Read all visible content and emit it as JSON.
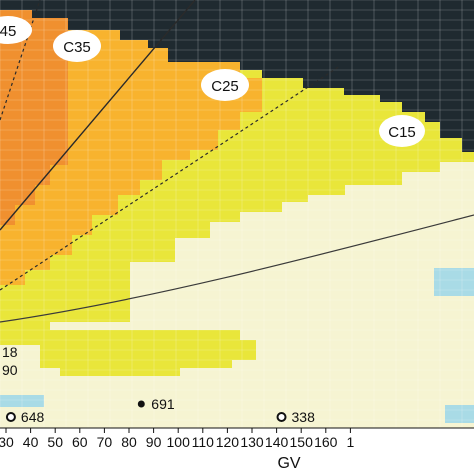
{
  "chart_data": {
    "type": "heatmap",
    "xlabel": "GV",
    "x_ticks": [
      "30",
      "40",
      "50",
      "60",
      "70",
      "80",
      "90",
      "100",
      "110",
      "120",
      "130",
      "140",
      "150",
      "160",
      "1"
    ],
    "zone_colors": {
      "dark": "#1f2a30",
      "deep_orange": "#f0902f",
      "orange": "#f8b32e",
      "yellow": "#e9e63a",
      "pale": "#f6f4d2",
      "blue": "#a9dbe6",
      "grid": "#ffffff"
    },
    "contour_labels": [
      "45",
      "C35",
      "C25",
      "C15"
    ],
    "left_labels": [
      "18",
      "90"
    ],
    "points": [
      {
        "label": "648",
        "marker": "open",
        "x": 32,
        "y_value": "648"
      },
      {
        "label": "691",
        "marker": "filled",
        "x": 85,
        "y_value": "691"
      },
      {
        "label": "338",
        "marker": "open",
        "x": 142,
        "y_value": "338"
      }
    ]
  }
}
